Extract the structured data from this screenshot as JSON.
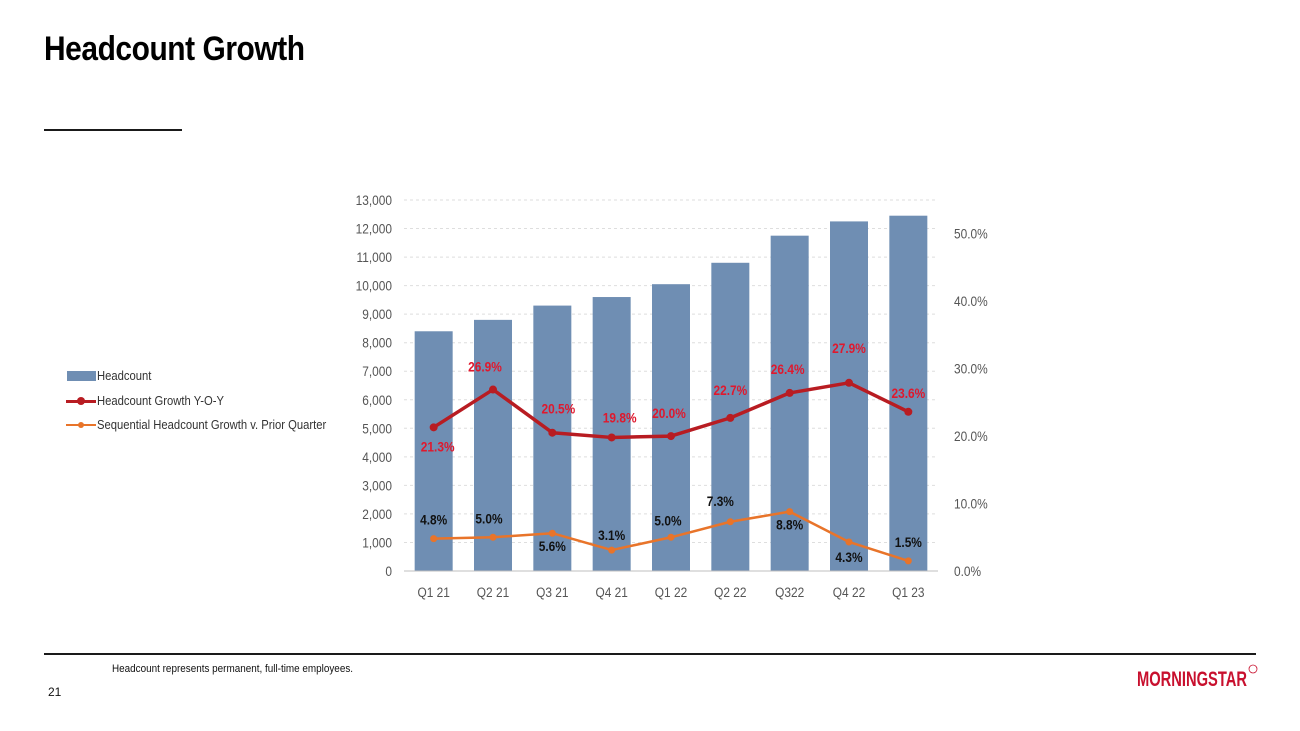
{
  "slide": {
    "title": "Headcount Growth",
    "footnote": "Headcount represents permanent, full-time employees.",
    "page_number": "21",
    "logo_text": "MORNINGSTAR"
  },
  "colors": {
    "bar": "#6f8eb3",
    "yoy": "#b81c22",
    "seq": "#e8742a",
    "label_red": "#e0182d",
    "label_dark": "#111111",
    "axis_text": "#555555",
    "grid": "#dedede",
    "logo": "#c8102e"
  },
  "legend": {
    "headcount": "Headcount",
    "yoy": "Headcount Growth Y-O-Y",
    "seq": "Sequential Headcount Growth v. Prior Quarter"
  },
  "chart_data": {
    "type": "bar",
    "categories": [
      "Q1 21",
      "Q2 21",
      "Q3 21",
      "Q4 21",
      "Q1 22",
      "Q2 22",
      "Q322",
      "Q4 22",
      "Q1 23"
    ],
    "series": [
      {
        "name": "Headcount",
        "type": "bar",
        "axis": "left",
        "values": [
          8400,
          8800,
          9300,
          9600,
          10050,
          10800,
          11750,
          12250,
          12450
        ]
      },
      {
        "name": "Headcount Growth Y-O-Y",
        "type": "line",
        "axis": "right",
        "values": [
          21.3,
          26.9,
          20.5,
          19.8,
          20.0,
          22.7,
          26.4,
          27.9,
          23.6
        ],
        "labels": [
          "21.3%",
          "26.9%",
          "20.5%",
          "19.8%",
          "20.0%",
          "22.7%",
          "26.4%",
          "27.9%",
          "23.6%"
        ]
      },
      {
        "name": "Sequential Headcount Growth v. Prior Quarter",
        "type": "line",
        "axis": "right",
        "values": [
          4.8,
          5.0,
          5.6,
          3.1,
          5.0,
          7.3,
          8.8,
          4.3,
          1.5
        ],
        "labels": [
          "4.8%",
          "5.0%",
          "5.6%",
          "3.1%",
          "5.0%",
          "7.3%",
          "8.8%",
          "4.3%",
          "1.5%"
        ]
      }
    ],
    "y_left": {
      "min": 0,
      "max": 13000,
      "step": 1000,
      "tick_labels": [
        "0",
        "1,000",
        "2,000",
        "3,000",
        "4,000",
        "5,000",
        "6,000",
        "7,000",
        "8,000",
        "9,000",
        "10,000",
        "11,000",
        "12,000",
        "13,000"
      ]
    },
    "y_right": {
      "min": 0,
      "max": 55,
      "ticks": [
        0,
        10,
        20,
        30,
        40,
        50
      ],
      "tick_labels": [
        "0.0%",
        "10.0%",
        "20.0%",
        "30.0%",
        "40.0%",
        "50.0%"
      ]
    },
    "grid": true,
    "legend_position": "left"
  }
}
